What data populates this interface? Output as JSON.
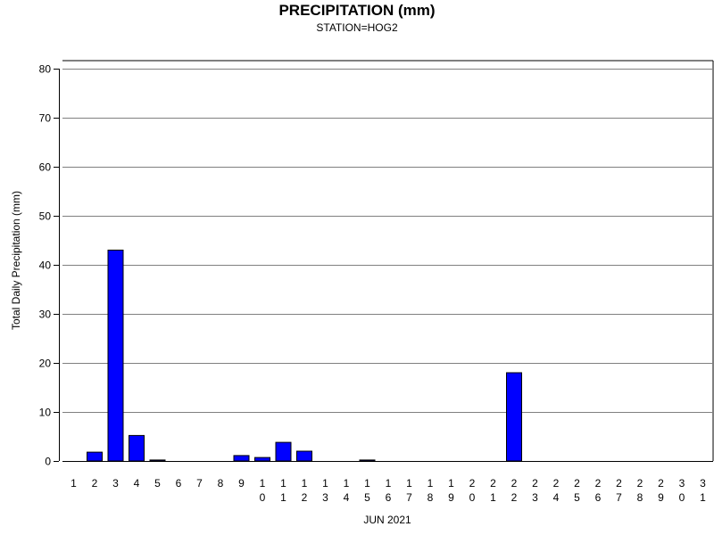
{
  "chart_data": {
    "type": "bar",
    "title": "PRECIPITATION (mm)",
    "subtitle": "STATION=HOG2",
    "xlabel": "JUN 2021",
    "ylabel": "Total Daily Precipitation (mm)",
    "ylim": [
      0,
      80
    ],
    "yticks": [
      0,
      10,
      20,
      30,
      40,
      50,
      60,
      70,
      80
    ],
    "grid": true,
    "bar_color": "#0000ff",
    "categories": [
      "1",
      "2",
      "3",
      "4",
      "5",
      "6",
      "7",
      "8",
      "9",
      "10",
      "11",
      "12",
      "13",
      "14",
      "15",
      "16",
      "17",
      "18",
      "19",
      "20",
      "21",
      "22",
      "23",
      "24",
      "25",
      "26",
      "27",
      "28",
      "29",
      "30",
      "31"
    ],
    "values": [
      0,
      1.8,
      43,
      5.2,
      0.2,
      0,
      0,
      0,
      1.1,
      0.7,
      3.8,
      2.0,
      0,
      0,
      0.2,
      0,
      0,
      0,
      0,
      0,
      0,
      18,
      0,
      0,
      0,
      0,
      0,
      0,
      0,
      0,
      0
    ]
  }
}
